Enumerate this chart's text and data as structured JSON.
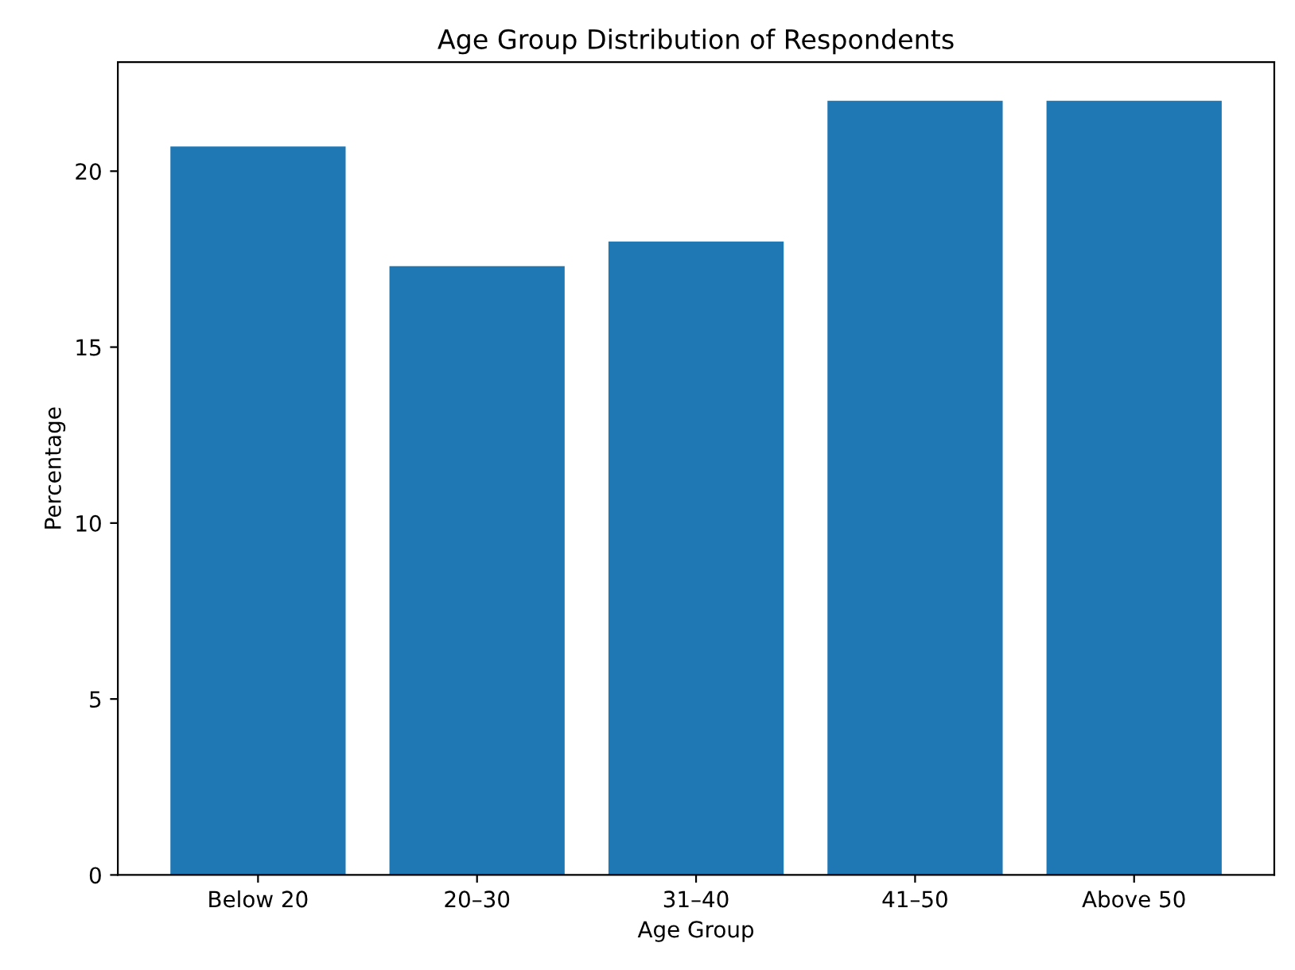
{
  "chart_data": {
    "type": "bar",
    "title": "Age Group Distribution of Respondents",
    "xlabel": "Age Group",
    "ylabel": "Percentage",
    "categories": [
      "Below 20",
      "20–30",
      "31–40",
      "41–50",
      "Above 50"
    ],
    "values": [
      20.7,
      17.3,
      18.0,
      22.0,
      22.0
    ],
    "color": "#1f77b4",
    "ylim": [
      0,
      23.1
    ],
    "yticks": [
      0,
      5,
      10,
      15,
      20
    ],
    "grid": false,
    "legend": false
  }
}
